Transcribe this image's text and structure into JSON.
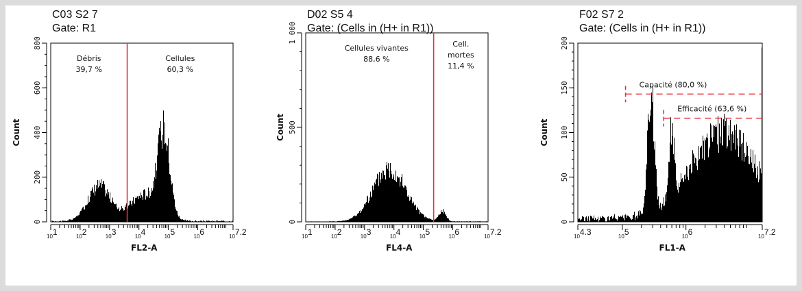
{
  "chart_data": [
    {
      "type": "histogram",
      "title": "C03 S2 7",
      "subtitle": "Gate: R1",
      "xlabel": "FL2-A",
      "ylabel": "Count",
      "x_scale": "log",
      "xlim_log10": [
        1,
        7.2
      ],
      "x_ticks": [
        "10^1",
        "10^2",
        "10^3",
        "10^4",
        "10^5",
        "10^6",
        "10^7.2"
      ],
      "ylim": [
        0,
        800
      ],
      "y_ticks": [
        "0",
        "200",
        "400",
        "600",
        "800"
      ],
      "gates": [
        {
          "type": "vertical",
          "x_log10": 3.6,
          "color": "#e8303a"
        }
      ],
      "annotations": [
        {
          "label": "Débris",
          "value": "39,7 %"
        },
        {
          "label": "Cellules",
          "value": "60,3 %"
        }
      ],
      "peaks": [
        {
          "x_log10": 2.65,
          "height": 160,
          "width_log10": 0.38
        },
        {
          "x_log10": 4.85,
          "height": 370,
          "width_log10": 0.2
        },
        {
          "x_log10": 4.2,
          "height": 120,
          "width_log10": 0.5
        }
      ],
      "baseline": 6
    },
    {
      "type": "histogram",
      "title": "D02 S5 4",
      "subtitle": "Gate: (Cells in (H+ in R1))",
      "xlabel": "FL4-A",
      "ylabel": "Count",
      "x_scale": "log",
      "xlim_log10": [
        1,
        7.2
      ],
      "x_ticks": [
        "10^1",
        "10^2",
        "10^3",
        "10^4",
        "10^5",
        "10^6",
        "10^7.2"
      ],
      "ylim": [
        0,
        1000
      ],
      "y_ticks": [
        "0",
        "500",
        "1 000"
      ],
      "gates": [
        {
          "type": "vertical",
          "x_log10": 5.35,
          "color": "#e8303a"
        }
      ],
      "annotations": [
        {
          "label": "Cellules vivantes",
          "value": "88,6 %"
        },
        {
          "label": "Cell. mortes",
          "value": "11,4 %"
        }
      ],
      "peaks": [
        {
          "x_log10": 3.85,
          "height": 285,
          "width_log10": 0.55
        },
        {
          "x_log10": 5.65,
          "height": 55,
          "width_log10": 0.12
        }
      ],
      "baseline": 3
    },
    {
      "type": "histogram",
      "title": "F02 S7 2",
      "subtitle": "Gate: (Cells in (H+ in R1))",
      "xlabel": "FL1-A",
      "ylabel": "Count",
      "x_scale": "log",
      "xlim_log10": [
        4.3,
        7.2
      ],
      "x_ticks": [
        "10^4.3",
        "10^5",
        "10^6",
        "10^7.2"
      ],
      "ylim": [
        0,
        200
      ],
      "y_ticks": [
        "0",
        "50",
        "100",
        "150",
        "200"
      ],
      "thresholds": [
        {
          "label": "Capacité (80,0 %)",
          "y": 143,
          "x_start_log10": 5.05,
          "color": "#e8303a"
        },
        {
          "label": "Efficacité (63,6 %)",
          "y": 116,
          "x_start_log10": 5.65,
          "color": "#e8303a"
        }
      ],
      "peaks": [
        {
          "x_log10": 5.45,
          "height": 140,
          "width_log10": 0.05
        },
        {
          "x_log10": 5.78,
          "height": 80,
          "width_log10": 0.04
        },
        {
          "x_log10": 6.6,
          "height": 95,
          "width_log10": 0.5
        }
      ],
      "baseline": 8,
      "edge_spike": {
        "x_log10": 7.2,
        "height": 195
      }
    }
  ]
}
